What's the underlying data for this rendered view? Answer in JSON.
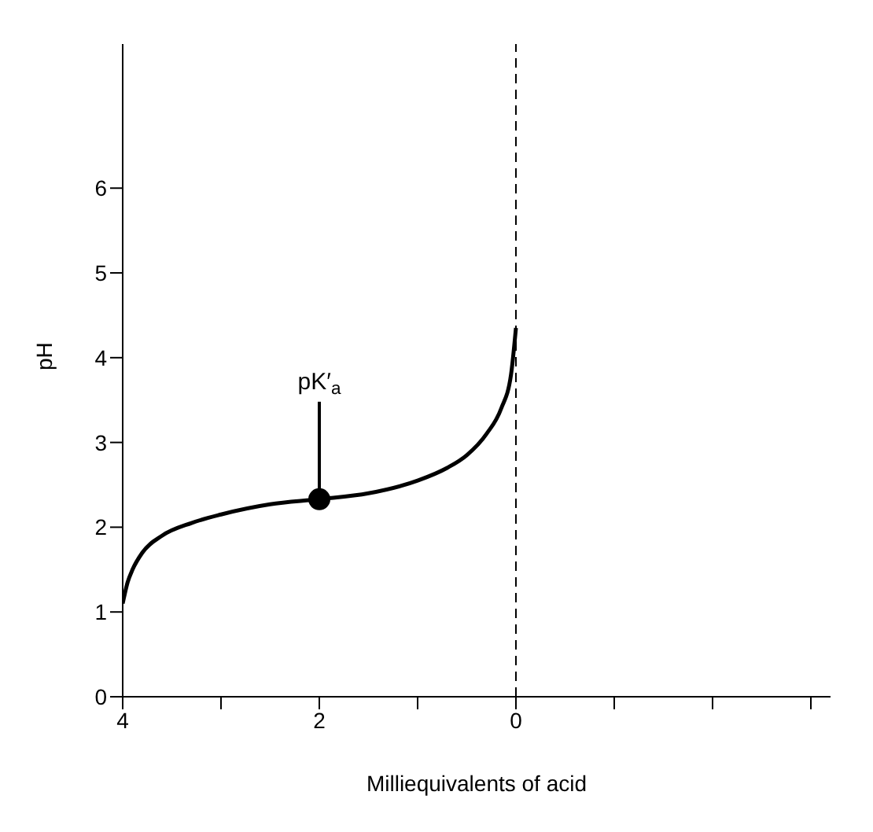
{
  "chart_data": {
    "type": "line",
    "xlabel": "Milliequivalents of acid",
    "ylabel": "pH",
    "xlim": [
      4,
      -3.2
    ],
    "xticks": [
      4,
      {
        "value": 3,
        "label": null
      },
      2,
      {
        "value": 1,
        "label": null
      },
      0,
      {
        "value": -1,
        "label": null
      },
      {
        "value": -2,
        "label": null
      },
      {
        "value": -3,
        "label": null
      }
    ],
    "ylim": [
      0,
      7.7
    ],
    "yticks": [
      0,
      1,
      2,
      3,
      4,
      5,
      6
    ],
    "grid": false,
    "series": [
      {
        "color": "#000000",
        "marker": "none",
        "line_style": "solid",
        "x": [
          4,
          3.95,
          3.9,
          3.8,
          3.6,
          3.3,
          3,
          2.5,
          2,
          1.5,
          1,
          0.7,
          0.5,
          0.3,
          0.15,
          0.05,
          0
        ],
        "values": [
          1.1,
          1.35,
          1.5,
          1.7,
          1.9,
          2.05,
          2.15,
          2.27,
          2.33,
          2.4,
          2.55,
          2.7,
          2.85,
          3.1,
          3.4,
          3.8,
          4.35
        ]
      },
      {
        "type": "scatter",
        "color": "#000000",
        "marker": "circle",
        "x": [
          2
        ],
        "values": [
          2.33
        ]
      }
    ],
    "ref_lines": [
      {
        "axis": "x",
        "value": 0,
        "line_style": "dashed",
        "color": "#000000"
      }
    ],
    "annotations": [
      {
        "text": "pK′$_{a}$",
        "x": 2,
        "y": 2.33
      }
    ]
  }
}
